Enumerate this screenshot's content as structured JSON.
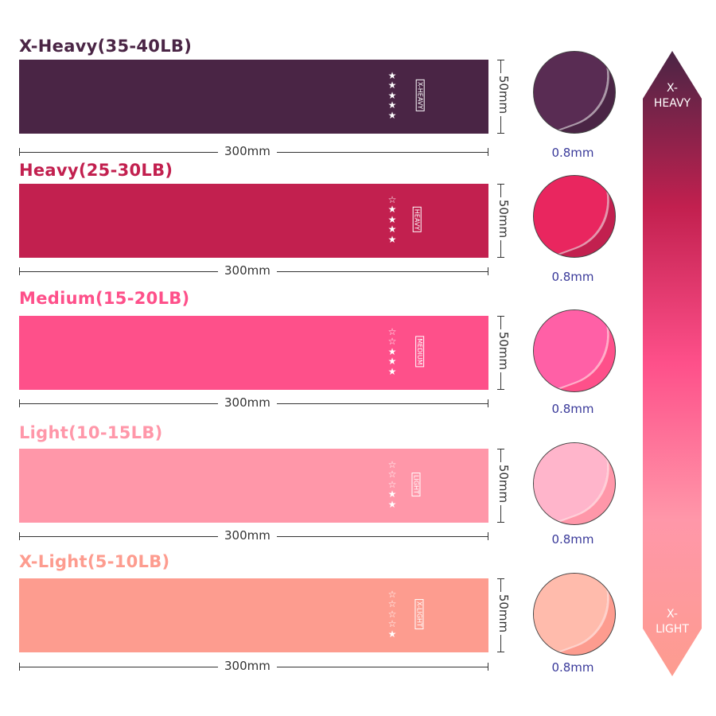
{
  "bands": [
    {
      "label": "X-Heavy(35-40LB)",
      "badge": "X-HEAVY",
      "stars": 5,
      "color": "#4a2545",
      "label_color": "#4a2545",
      "width": "300mm",
      "height": "50mm",
      "thickness": "0.8mm"
    },
    {
      "label": "Heavy(25-30LB)",
      "badge": "HEAVY",
      "stars": 4,
      "color": "#c2204f",
      "label_color": "#c2204f",
      "width": "300mm",
      "height": "50mm",
      "thickness": "0.8mm"
    },
    {
      "label": "Medium(15-20LB)",
      "badge": "MEDIUM",
      "stars": 3,
      "color": "#fe508a",
      "label_color": "#fe508a",
      "width": "300mm",
      "height": "50mm",
      "thickness": "0.8mm"
    },
    {
      "label": "Light(10-15LB)",
      "badge": "LIGHT",
      "stars": 2,
      "color": "#ff97a9",
      "label_color": "#ff97a9",
      "width": "300mm",
      "height": "50mm",
      "thickness": "0.8mm"
    },
    {
      "label": "X-Light(5-10LB)",
      "badge": "X-LIGHT",
      "stars": 1,
      "color": "#fd9c8f",
      "label_color": "#fd9c8f",
      "width": "300mm",
      "height": "50mm",
      "thickness": "0.8mm"
    }
  ],
  "scale": {
    "top": "X-\nHEAVY",
    "bottom": "X-\nLIGHT"
  }
}
